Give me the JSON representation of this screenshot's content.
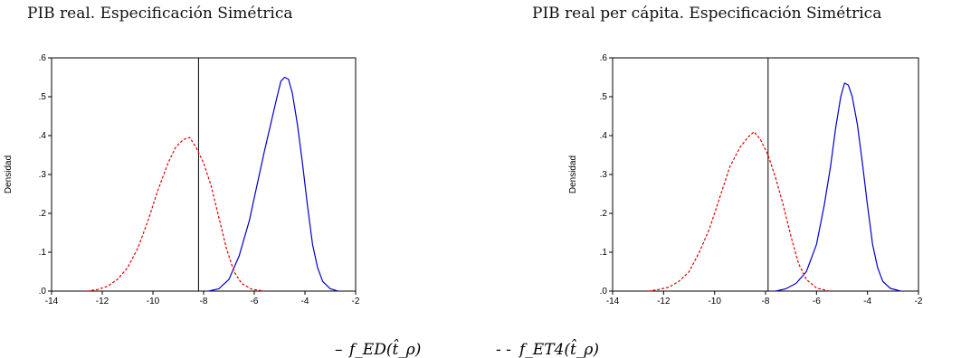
{
  "legend": {
    "solid_marker": "–",
    "solid_label": "f_ED(t̂_ρ)",
    "dashed_marker": "- -",
    "dashed_label": "f_ET4(t̂_ρ)"
  },
  "chart_data": [
    {
      "type": "line",
      "title": "PIB real. Especificación Simétrica",
      "ylabel": "Densidad",
      "xlabel": "",
      "xlim": [
        -14,
        -2
      ],
      "ylim": [
        0,
        0.6
      ],
      "xticks": [
        "-14",
        "-12",
        "-10",
        "-8",
        "-6",
        "-4",
        "-2"
      ],
      "yticks": [
        ".0",
        ".1",
        ".2",
        ".3",
        ".4",
        ".5",
        ".6"
      ],
      "vline": -8.2,
      "series": [
        {
          "style": "solid",
          "color": "#0000cc",
          "points": [
            [
              -7.8,
              0
            ],
            [
              -7.4,
              0.006
            ],
            [
              -7.0,
              0.03
            ],
            [
              -6.6,
              0.09
            ],
            [
              -6.2,
              0.18
            ],
            [
              -5.9,
              0.27
            ],
            [
              -5.6,
              0.36
            ],
            [
              -5.35,
              0.43
            ],
            [
              -5.1,
              0.5
            ],
            [
              -4.95,
              0.54
            ],
            [
              -4.8,
              0.55
            ],
            [
              -4.65,
              0.545
            ],
            [
              -4.5,
              0.51
            ],
            [
              -4.3,
              0.43
            ],
            [
              -4.1,
              0.33
            ],
            [
              -3.9,
              0.22
            ],
            [
              -3.7,
              0.12
            ],
            [
              -3.5,
              0.06
            ],
            [
              -3.3,
              0.025
            ],
            [
              -3.0,
              0.006
            ],
            [
              -2.7,
              0
            ]
          ]
        },
        {
          "style": "dashed",
          "color": "#dd0000",
          "points": [
            [
              -12.6,
              0
            ],
            [
              -12.2,
              0.004
            ],
            [
              -11.8,
              0.012
            ],
            [
              -11.4,
              0.03
            ],
            [
              -11.0,
              0.06
            ],
            [
              -10.6,
              0.11
            ],
            [
              -10.2,
              0.18
            ],
            [
              -9.8,
              0.26
            ],
            [
              -9.4,
              0.33
            ],
            [
              -9.1,
              0.37
            ],
            [
              -8.8,
              0.39
            ],
            [
              -8.55,
              0.395
            ],
            [
              -8.3,
              0.37
            ],
            [
              -8.0,
              0.33
            ],
            [
              -7.7,
              0.27
            ],
            [
              -7.4,
              0.19
            ],
            [
              -7.1,
              0.11
            ],
            [
              -6.8,
              0.05
            ],
            [
              -6.5,
              0.02
            ],
            [
              -6.1,
              0.005
            ],
            [
              -5.6,
              0
            ]
          ]
        }
      ]
    },
    {
      "type": "line",
      "title": "PIB real per cápita. Especificación Simétrica",
      "ylabel": "Densidad",
      "xlabel": "",
      "xlim": [
        -14,
        -2
      ],
      "ylim": [
        0,
        0.6
      ],
      "xticks": [
        "-14",
        "-12",
        "-10",
        "-8",
        "-6",
        "-4",
        "-2"
      ],
      "yticks": [
        ".0",
        ".1",
        ".2",
        ".3",
        ".4",
        ".5",
        ".6"
      ],
      "vline": -7.9,
      "series": [
        {
          "style": "solid",
          "color": "#0000cc",
          "points": [
            [
              -7.6,
              0
            ],
            [
              -7.2,
              0.006
            ],
            [
              -6.8,
              0.02
            ],
            [
              -6.4,
              0.05
            ],
            [
              -6.0,
              0.12
            ],
            [
              -5.7,
              0.22
            ],
            [
              -5.45,
              0.32
            ],
            [
              -5.25,
              0.42
            ],
            [
              -5.05,
              0.5
            ],
            [
              -4.9,
              0.535
            ],
            [
              -4.75,
              0.53
            ],
            [
              -4.6,
              0.5
            ],
            [
              -4.4,
              0.43
            ],
            [
              -4.2,
              0.33
            ],
            [
              -4.0,
              0.22
            ],
            [
              -3.8,
              0.12
            ],
            [
              -3.6,
              0.06
            ],
            [
              -3.4,
              0.025
            ],
            [
              -3.1,
              0.007
            ],
            [
              -2.7,
              0
            ]
          ]
        },
        {
          "style": "dashed",
          "color": "#dd0000",
          "points": [
            [
              -12.6,
              0
            ],
            [
              -12.2,
              0.004
            ],
            [
              -11.8,
              0.01
            ],
            [
              -11.4,
              0.025
            ],
            [
              -11.0,
              0.05
            ],
            [
              -10.6,
              0.1
            ],
            [
              -10.2,
              0.16
            ],
            [
              -9.8,
              0.24
            ],
            [
              -9.4,
              0.32
            ],
            [
              -9.0,
              0.37
            ],
            [
              -8.7,
              0.395
            ],
            [
              -8.45,
              0.41
            ],
            [
              -8.2,
              0.39
            ],
            [
              -7.9,
              0.35
            ],
            [
              -7.6,
              0.29
            ],
            [
              -7.3,
              0.22
            ],
            [
              -7.0,
              0.14
            ],
            [
              -6.7,
              0.07
            ],
            [
              -6.4,
              0.03
            ],
            [
              -6.0,
              0.008
            ],
            [
              -5.5,
              0
            ]
          ]
        }
      ]
    }
  ]
}
